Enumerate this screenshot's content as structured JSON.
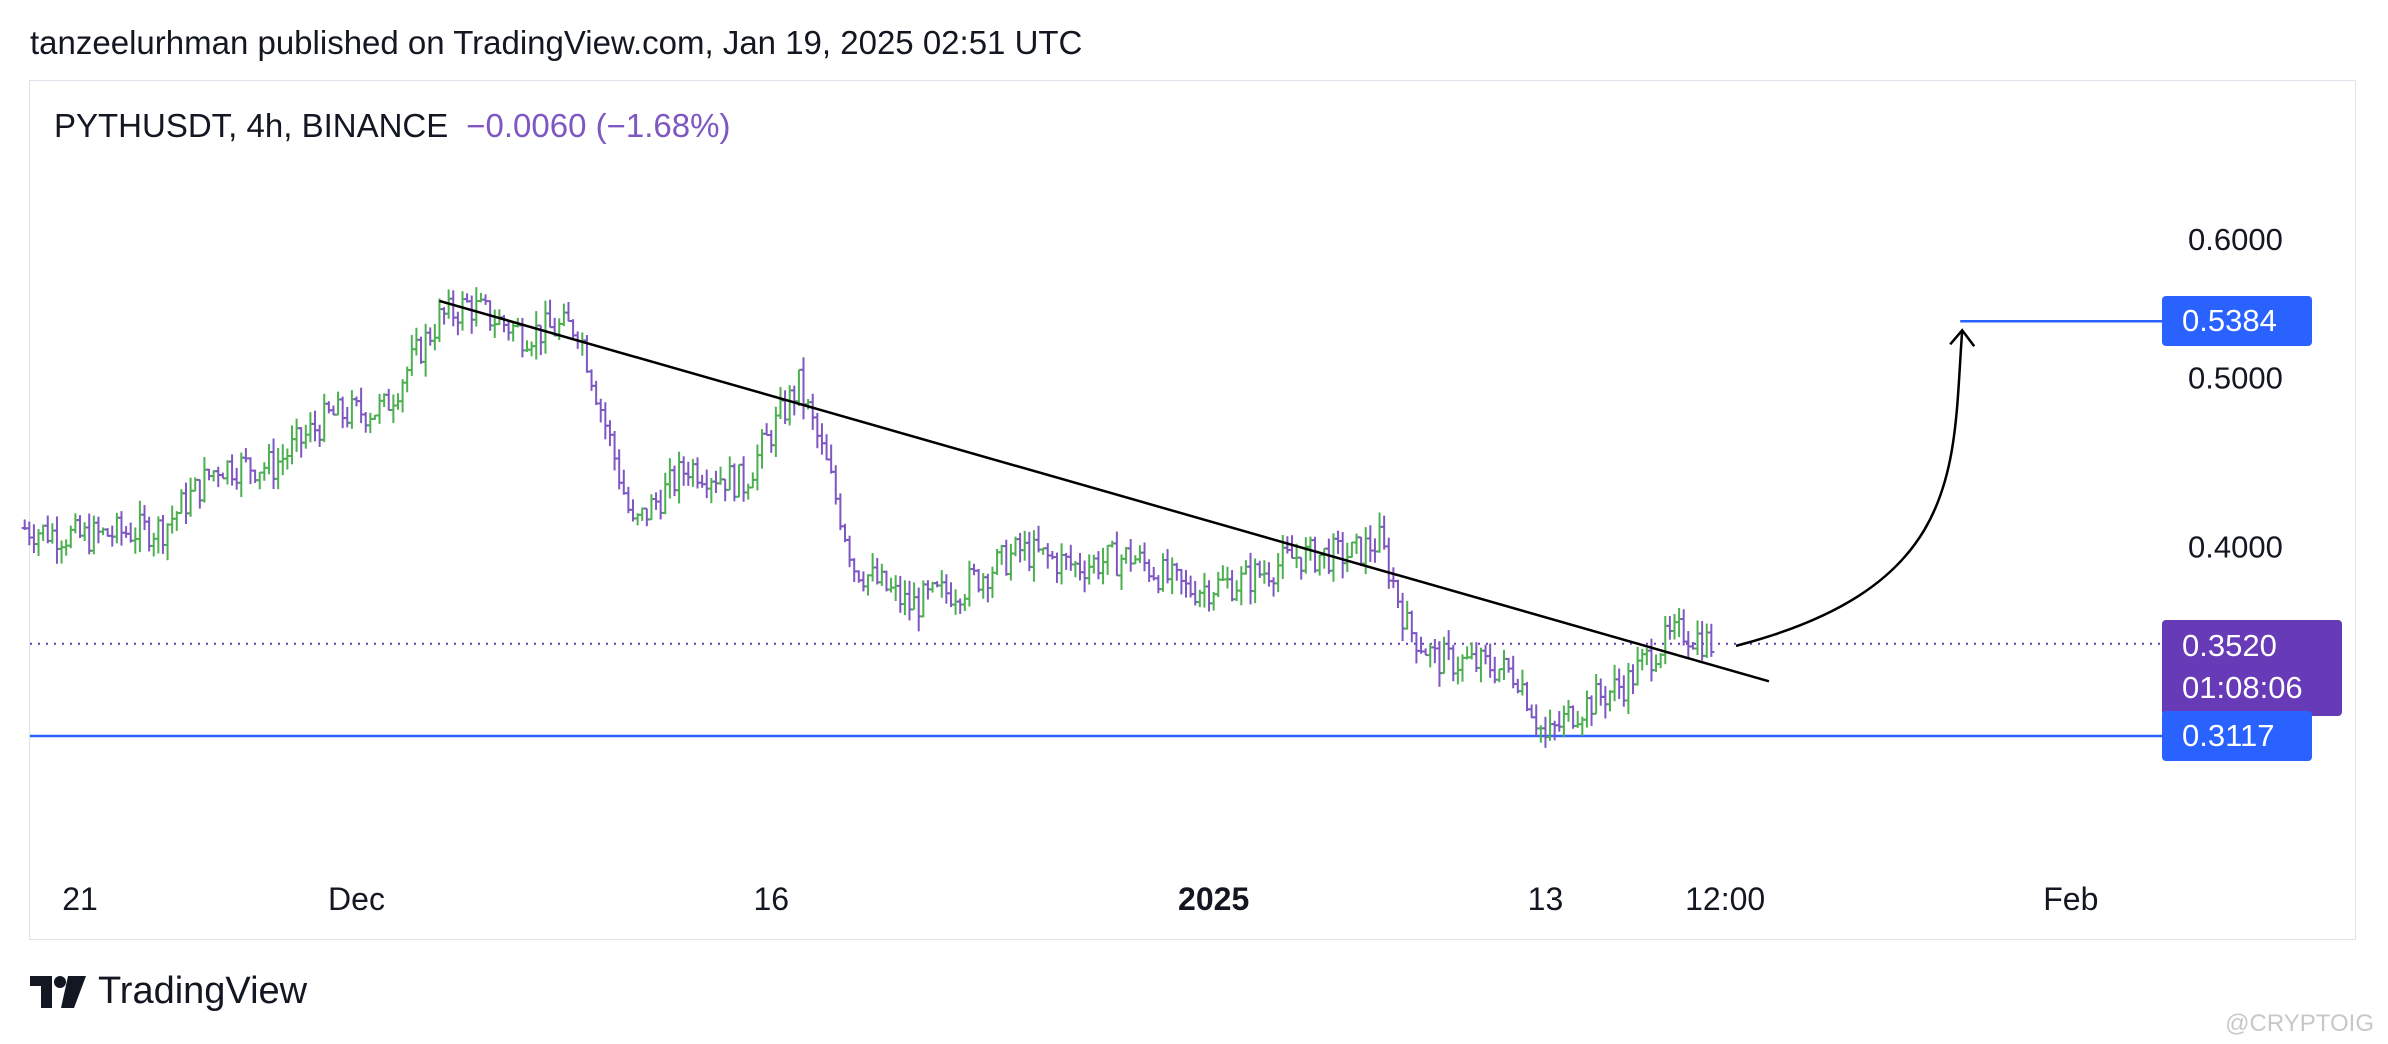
{
  "header": {
    "publish_text": "tanzeelurhman published on TradingView.com, Jan 19, 2025 02:51 UTC"
  },
  "legend": {
    "symbol": "PYTHUSDT, 4h, BINANCE",
    "change": "−0.0060 (−1.68%)"
  },
  "price_tags": {
    "target": "0.5384",
    "current_price": "0.3520",
    "countdown": "01:08:06",
    "support": "0.3117"
  },
  "footer": {
    "brand": "TradingView",
    "watermark": "@CRYPTOIG"
  },
  "colors": {
    "up": "#4caf50",
    "down": "#7e57c2",
    "level_line": "#2962ff",
    "current_price_line": "#673ab7",
    "trendline": "#000000"
  },
  "chart_data": {
    "type": "ohlc",
    "symbol": "PYTHUSDT",
    "interval": "4h",
    "exchange": "BINANCE",
    "price_scale": "log",
    "y_ticks": [
      0.6,
      0.5,
      0.4
    ],
    "y_tick_labels": [
      "0.6000",
      "0.5000",
      "0.4000"
    ],
    "x_ticks": [
      {
        "label": "21",
        "date": "2024-11-21",
        "major": false
      },
      {
        "label": "Dec",
        "date": "2024-12-01",
        "major": false
      },
      {
        "label": "16",
        "date": "2024-12-16",
        "major": false
      },
      {
        "label": "2025",
        "date": "2025-01-01",
        "major": true
      },
      {
        "label": "13",
        "date": "2025-01-13",
        "major": false
      },
      {
        "label": "12:00",
        "date": "2025-01-19T12:00",
        "major": false
      },
      {
        "label": "Feb",
        "date": "2025-02-01",
        "major": false
      }
    ],
    "price_path": [
      {
        "date": "2024-11-19",
        "close": 0.41
      },
      {
        "date": "2024-11-21",
        "close": 0.405
      },
      {
        "date": "2024-11-24",
        "close": 0.41
      },
      {
        "date": "2024-11-26",
        "close": 0.445
      },
      {
        "date": "2024-11-28",
        "close": 0.445
      },
      {
        "date": "2024-11-30",
        "close": 0.475
      },
      {
        "date": "2024-12-02",
        "close": 0.48
      },
      {
        "date": "2024-12-04",
        "close": 0.54
      },
      {
        "date": "2024-12-05",
        "close": 0.55
      },
      {
        "date": "2024-12-07",
        "close": 0.53
      },
      {
        "date": "2024-12-09",
        "close": 0.535
      },
      {
        "date": "2024-12-10",
        "close": 0.47
      },
      {
        "date": "2024-12-11",
        "close": 0.41
      },
      {
        "date": "2024-12-13",
        "close": 0.445
      },
      {
        "date": "2024-12-15",
        "close": 0.435
      },
      {
        "date": "2024-12-17",
        "close": 0.495
      },
      {
        "date": "2024-12-18",
        "close": 0.445
      },
      {
        "date": "2024-12-19",
        "close": 0.39
      },
      {
        "date": "2024-12-21",
        "close": 0.37
      },
      {
        "date": "2024-12-23",
        "close": 0.38
      },
      {
        "date": "2024-12-25",
        "close": 0.398
      },
      {
        "date": "2024-12-27",
        "close": 0.39
      },
      {
        "date": "2024-12-29",
        "close": 0.395
      },
      {
        "date": "2024-12-31",
        "close": 0.378
      },
      {
        "date": "2025-01-02",
        "close": 0.382
      },
      {
        "date": "2025-01-04",
        "close": 0.395
      },
      {
        "date": "2025-01-06",
        "close": 0.396
      },
      {
        "date": "2025-01-07",
        "close": 0.403
      },
      {
        "date": "2025-01-08",
        "close": 0.36
      },
      {
        "date": "2025-01-09",
        "close": 0.345
      },
      {
        "date": "2025-01-11",
        "close": 0.342
      },
      {
        "date": "2025-01-12",
        "close": 0.338
      },
      {
        "date": "2025-01-13",
        "close": 0.31
      },
      {
        "date": "2025-01-14",
        "close": 0.322
      },
      {
        "date": "2025-01-16",
        "close": 0.335
      },
      {
        "date": "2025-01-17",
        "close": 0.35
      },
      {
        "date": "2025-01-18",
        "close": 0.358
      },
      {
        "date": "2025-01-19",
        "close": 0.352
      }
    ],
    "levels": [
      {
        "price": 0.5384,
        "from": "2025-01-28",
        "color": "blue"
      },
      {
        "price": 0.3117,
        "from": "2024-11-19",
        "color": "blue"
      },
      {
        "price": 0.352,
        "style": "dotted",
        "color": "purple"
      }
    ],
    "trendline": [
      {
        "date": "2024-12-04",
        "price": 0.553
      },
      {
        "date": "2025-01-20",
        "price": 0.335
      }
    ],
    "projection_arrow": {
      "from": {
        "date": "2025-01-20",
        "price": 0.351
      },
      "to": {
        "date": "2025-01-28",
        "price": 0.532
      }
    }
  }
}
